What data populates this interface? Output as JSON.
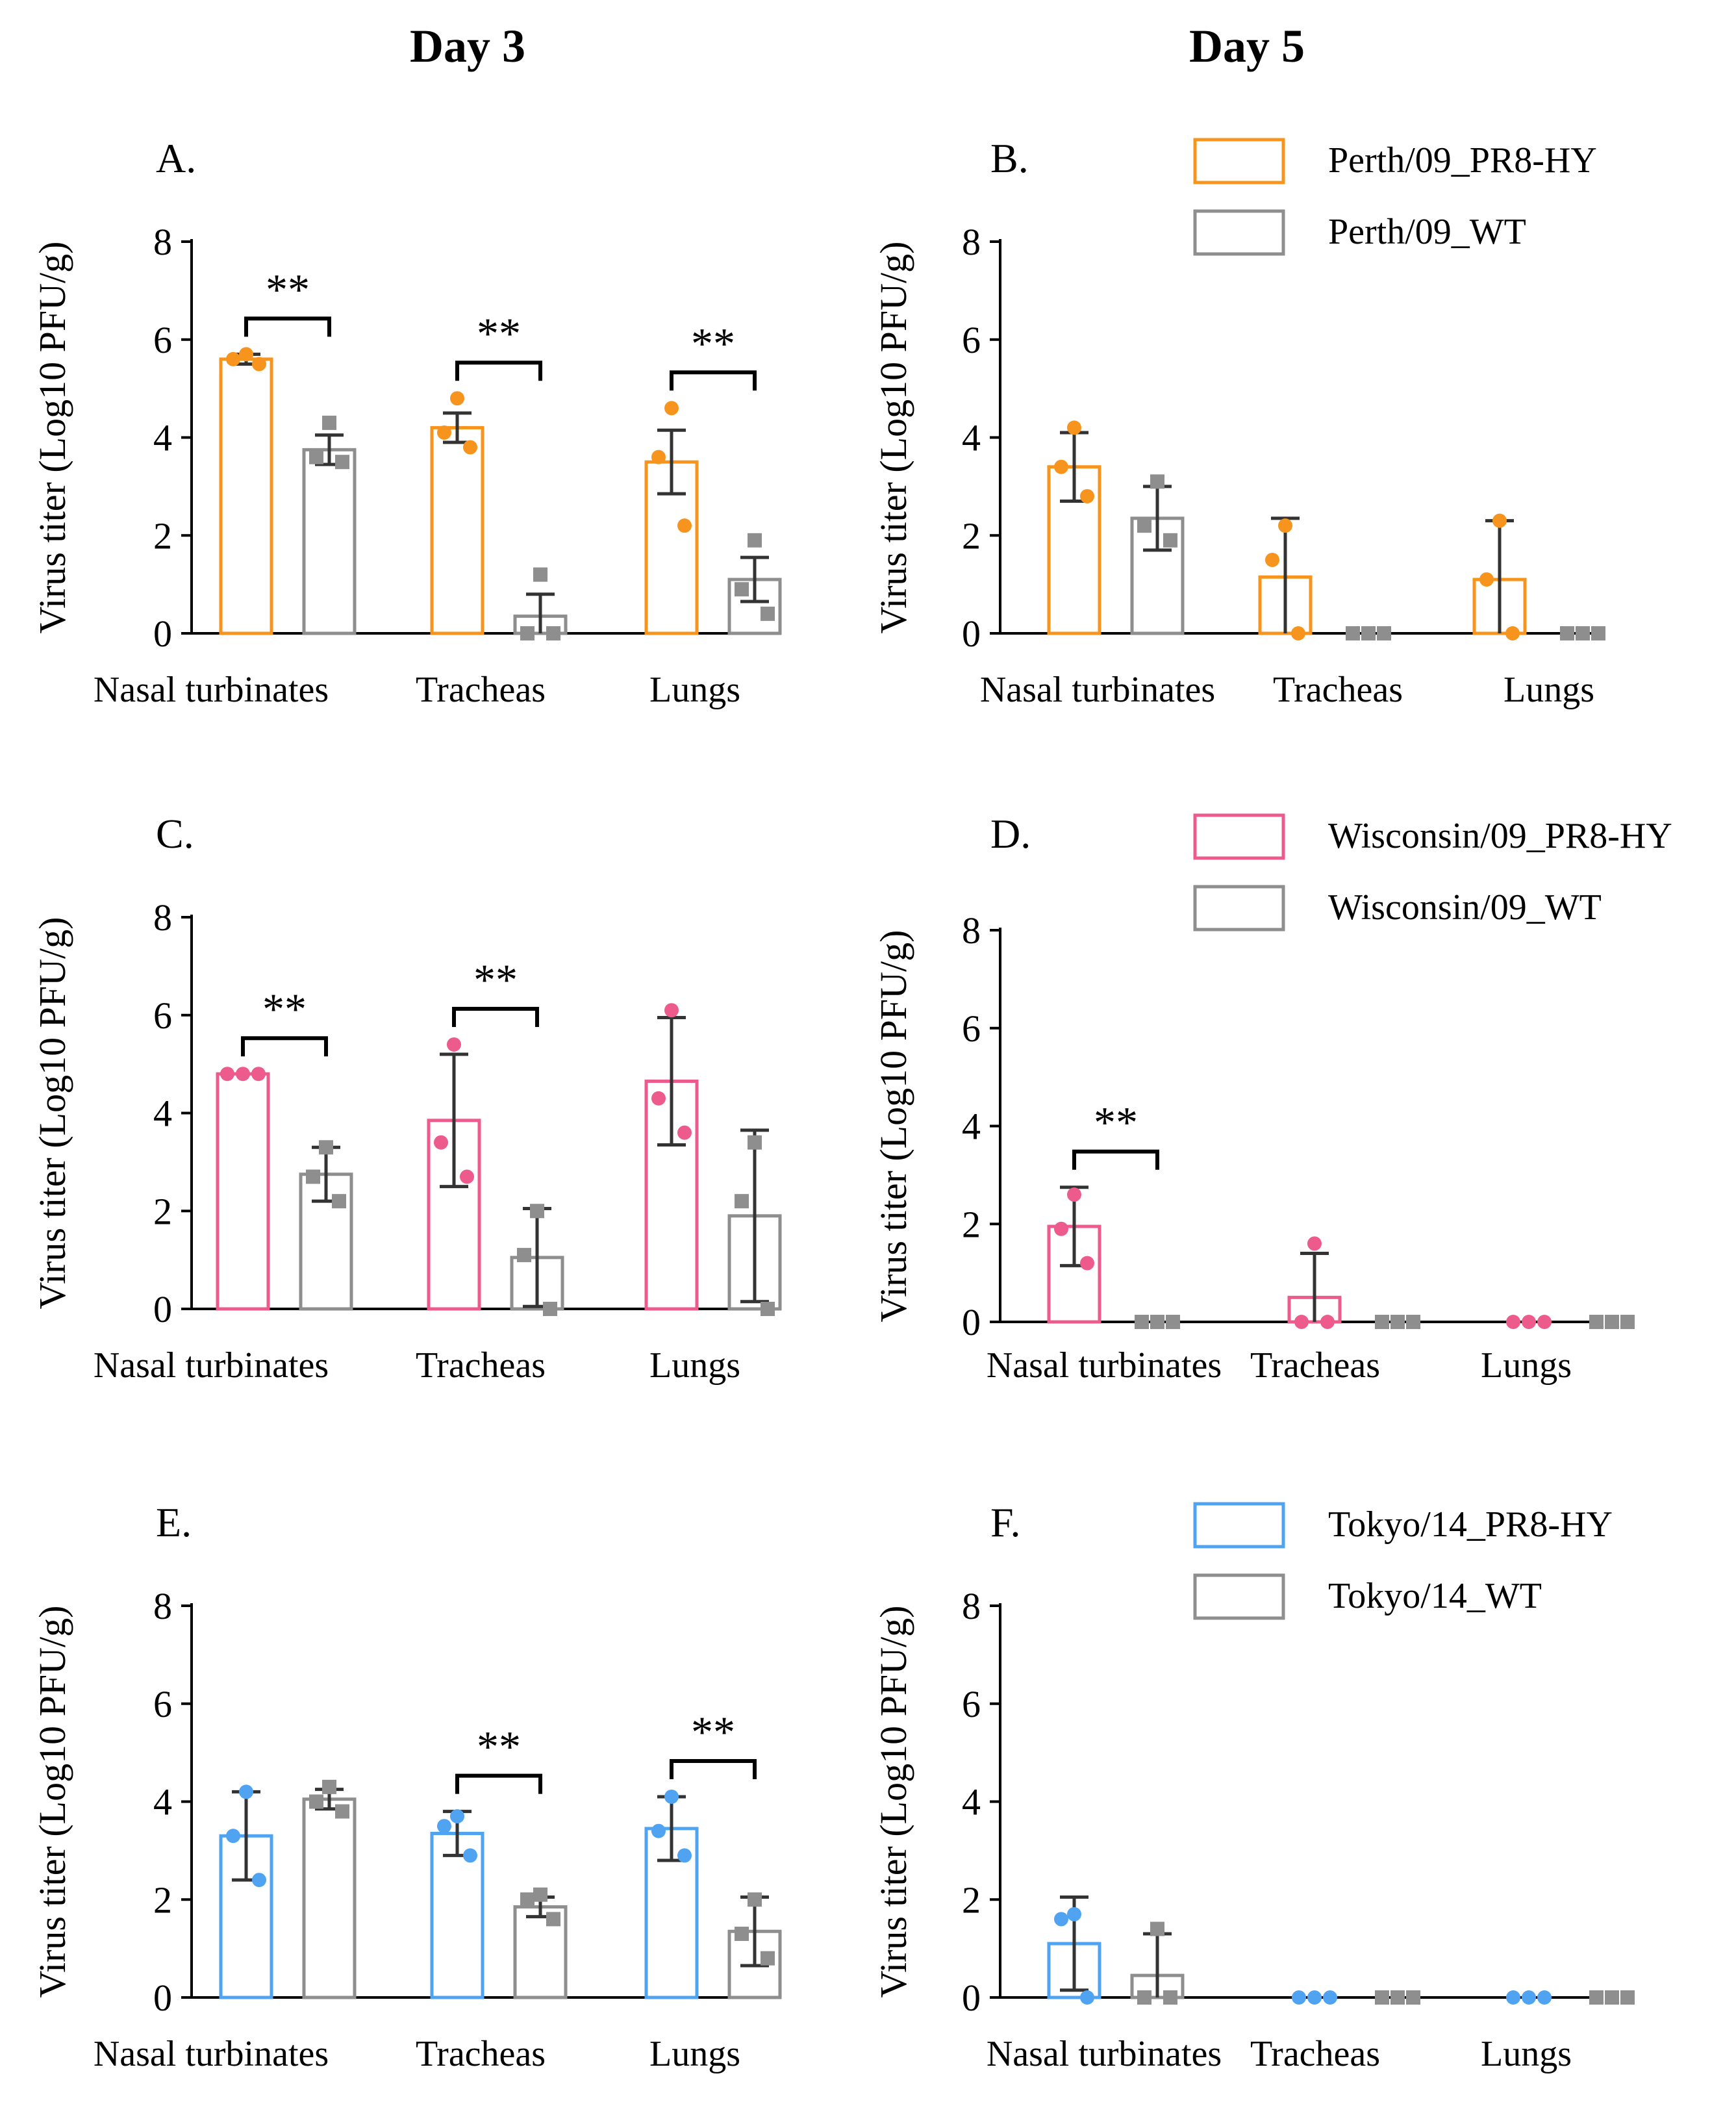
{
  "column_headers": [
    "Day 3",
    "Day 5"
  ],
  "colors": {
    "perth": "#F7941D",
    "wisconsin": "#EC5B8B",
    "tokyo": "#4FA3F0",
    "wt": "#8E8E8E",
    "axis": "#000000",
    "errorbar": "#333333"
  },
  "legends": [
    {
      "strain": "perth",
      "items": [
        {
          "label": "Perth/09_PR8-HY",
          "color_key": "perth"
        },
        {
          "label": "Perth/09_WT",
          "color_key": "wt"
        }
      ]
    },
    {
      "strain": "wisconsin",
      "items": [
        {
          "label": "Wisconsin/09_PR8-HY",
          "color_key": "wisconsin"
        },
        {
          "label": "Wisconsin/09_WT",
          "color_key": "wt"
        }
      ]
    },
    {
      "strain": "tokyo",
      "items": [
        {
          "label": "Tokyo/14_PR8-HY",
          "color_key": "tokyo"
        },
        {
          "label": "Tokyo/14_WT",
          "color_key": "wt"
        }
      ]
    }
  ],
  "chart_data": [
    {
      "panel": "A.",
      "day": "Day 3",
      "type": "bar",
      "color_key": "perth",
      "ylabel": "Virus titer (Log10 PFU/g)",
      "ylim": [
        0,
        8
      ],
      "yticks": [
        0,
        2,
        4,
        6,
        8
      ],
      "categories": [
        "Nasal turbinates",
        "Tracheas",
        "Lungs"
      ],
      "series": [
        {
          "name": "Perth/09_PR8-HY",
          "values": [
            5.6,
            4.2,
            3.5
          ],
          "err": [
            0.1,
            0.3,
            0.65
          ],
          "points": [
            [
              5.7,
              5.6,
              5.5
            ],
            [
              4.8,
              4.1,
              3.8
            ],
            [
              4.6,
              3.6,
              2.2
            ]
          ]
        },
        {
          "name": "Perth/09_WT",
          "values": [
            3.75,
            0.35,
            1.1
          ],
          "err": [
            0.3,
            0.45,
            0.45
          ],
          "points": [
            [
              4.3,
              3.6,
              3.5
            ],
            [
              1.2,
              0.0,
              0.0
            ],
            [
              1.9,
              0.9,
              0.4
            ]
          ]
        }
      ],
      "significance": [
        "**",
        "**",
        "**"
      ]
    },
    {
      "panel": "B.",
      "day": "Day 5",
      "type": "bar",
      "color_key": "perth",
      "ylabel": "Virus titer (Log10 PFU/g)",
      "ylim": [
        0,
        8
      ],
      "yticks": [
        0,
        2,
        4,
        6,
        8
      ],
      "categories": [
        "Nasal turbinates",
        "Tracheas",
        "Lungs"
      ],
      "series": [
        {
          "name": "Perth/09_PR8-HY",
          "values": [
            3.4,
            1.15,
            1.1
          ],
          "err": [
            0.7,
            1.2,
            1.2
          ],
          "points": [
            [
              4.2,
              3.4,
              2.8
            ],
            [
              2.2,
              1.5,
              0.0
            ],
            [
              2.3,
              1.1,
              0.0
            ]
          ]
        },
        {
          "name": "Perth/09_WT",
          "values": [
            2.35,
            0,
            0
          ],
          "err": [
            0.65,
            0,
            0
          ],
          "points": [
            [
              3.1,
              2.2,
              1.9
            ],
            [
              0,
              0,
              0
            ],
            [
              0,
              0,
              0
            ]
          ]
        }
      ],
      "significance": [
        "",
        "",
        ""
      ]
    },
    {
      "panel": "C.",
      "day": "Day 3",
      "type": "bar",
      "color_key": "wisconsin",
      "ylabel": "Virus titer (Log10 PFU/g)",
      "ylim": [
        0,
        8
      ],
      "yticks": [
        0,
        2,
        4,
        6,
        8
      ],
      "categories": [
        "Nasal turbinates",
        "Tracheas",
        "Lungs"
      ],
      "series": [
        {
          "name": "Wisconsin/09_PR8-HY",
          "values": [
            4.8,
            3.85,
            4.65
          ],
          "err": [
            0,
            1.35,
            1.3
          ],
          "points": [
            [
              4.8,
              4.8,
              4.8
            ],
            [
              5.4,
              3.4,
              2.7
            ],
            [
              6.1,
              4.3,
              3.6
            ]
          ]
        },
        {
          "name": "Wisconsin/09_WT",
          "values": [
            2.75,
            1.05,
            1.9
          ],
          "err": [
            0.55,
            1.0,
            1.75
          ],
          "points": [
            [
              3.3,
              2.7,
              2.2
            ],
            [
              2.0,
              1.1,
              0.0
            ],
            [
              3.4,
              2.2,
              0.0
            ]
          ]
        }
      ],
      "significance": [
        "**",
        "**",
        ""
      ]
    },
    {
      "panel": "D.",
      "day": "Day 5",
      "type": "bar",
      "color_key": "wisconsin",
      "ylabel": "Virus titer (Log10 PFU/g)",
      "ylim": [
        0,
        8
      ],
      "yticks": [
        0,
        2,
        4,
        6,
        8
      ],
      "categories": [
        "Nasal turbinates",
        "Tracheas",
        "Lungs"
      ],
      "series": [
        {
          "name": "Wisconsin/09_PR8-HY",
          "values": [
            1.95,
            0.5,
            0
          ],
          "err": [
            0.8,
            0.9,
            0
          ],
          "points": [
            [
              2.6,
              1.9,
              1.2
            ],
            [
              1.6,
              0.0,
              0.0
            ],
            [
              0,
              0,
              0
            ]
          ]
        },
        {
          "name": "Wisconsin/09_WT",
          "values": [
            0,
            0,
            0
          ],
          "err": [
            0,
            0,
            0
          ],
          "points": [
            [
              0,
              0,
              0
            ],
            [
              0,
              0,
              0
            ],
            [
              0,
              0,
              0
            ]
          ]
        }
      ],
      "significance": [
        "**",
        "",
        ""
      ]
    },
    {
      "panel": "E.",
      "day": "Day 3",
      "type": "bar",
      "color_key": "tokyo",
      "ylabel": "Virus titer (Log10 PFU/g)",
      "ylim": [
        0,
        8
      ],
      "yticks": [
        0,
        2,
        4,
        6,
        8
      ],
      "categories": [
        "Nasal turbinates",
        "Tracheas",
        "Lungs"
      ],
      "series": [
        {
          "name": "Tokyo/14_PR8-HY",
          "values": [
            3.3,
            3.35,
            3.45
          ],
          "err": [
            0.9,
            0.45,
            0.65
          ],
          "points": [
            [
              4.2,
              3.3,
              2.4
            ],
            [
              3.7,
              3.5,
              2.9
            ],
            [
              4.1,
              3.4,
              2.9
            ]
          ]
        },
        {
          "name": "Tokyo/14_WT",
          "values": [
            4.05,
            1.85,
            1.35
          ],
          "err": [
            0.2,
            0.2,
            0.7
          ],
          "points": [
            [
              4.3,
              4.0,
              3.8
            ],
            [
              2.1,
              2.0,
              1.6
            ],
            [
              2.0,
              1.3,
              0.8
            ]
          ]
        }
      ],
      "significance": [
        "",
        "**",
        "**"
      ]
    },
    {
      "panel": "F.",
      "day": "Day 5",
      "type": "bar",
      "color_key": "tokyo",
      "ylabel": "Virus titer (Log10 PFU/g)",
      "ylim": [
        0,
        8
      ],
      "yticks": [
        0,
        2,
        4,
        6,
        8
      ],
      "categories": [
        "Nasal turbinates",
        "Tracheas",
        "Lungs"
      ],
      "series": [
        {
          "name": "Tokyo/14_PR8-HY",
          "values": [
            1.1,
            0,
            0
          ],
          "err": [
            0.95,
            0,
            0
          ],
          "points": [
            [
              1.7,
              1.6,
              0.0
            ],
            [
              0,
              0,
              0
            ],
            [
              0,
              0,
              0
            ]
          ]
        },
        {
          "name": "Tokyo/14_WT",
          "values": [
            0.45,
            0,
            0
          ],
          "err": [
            0.85,
            0,
            0
          ],
          "points": [
            [
              1.4,
              0.0,
              0.0
            ],
            [
              0,
              0,
              0
            ],
            [
              0,
              0,
              0
            ]
          ]
        }
      ],
      "significance": [
        "",
        "",
        ""
      ]
    }
  ]
}
